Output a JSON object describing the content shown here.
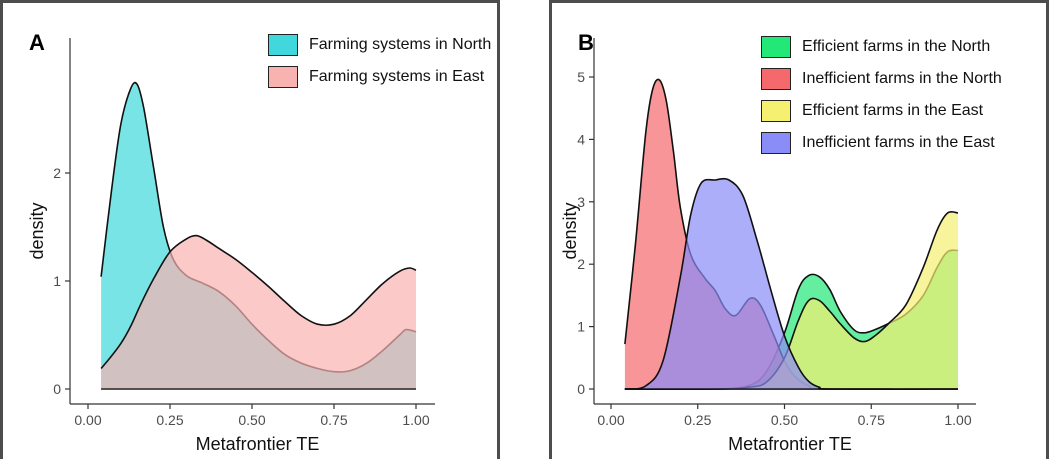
{
  "chart_data": [
    {
      "panel_label": "A",
      "type": "area",
      "xlabel": "Metafrontier TE",
      "ylabel": "density",
      "xlim": [
        0.0,
        1.0
      ],
      "ylim": [
        0.0,
        2.9
      ],
      "xticks": [
        "0.00",
        "0.25",
        "0.50",
        "0.75",
        "1.00"
      ],
      "yticks": [
        "0",
        "1",
        "2"
      ],
      "legend_position": "top-right",
      "grid": false,
      "series": [
        {
          "name": "Farming systems in North",
          "fill": "#40d8dc",
          "x": [
            0.04,
            0.07,
            0.1,
            0.13,
            0.15,
            0.17,
            0.2,
            0.23,
            0.26,
            0.3,
            0.35,
            0.4,
            0.45,
            0.5,
            0.55,
            0.6,
            0.65,
            0.7,
            0.75,
            0.8,
            0.85,
            0.9,
            0.95,
            0.97,
            1.0
          ],
          "y": [
            1.04,
            1.8,
            2.45,
            2.78,
            2.82,
            2.6,
            2.05,
            1.5,
            1.2,
            1.05,
            0.98,
            0.9,
            0.77,
            0.6,
            0.45,
            0.32,
            0.24,
            0.19,
            0.16,
            0.17,
            0.24,
            0.36,
            0.5,
            0.55,
            0.53
          ]
        },
        {
          "name": "Farming systems in East",
          "fill": "#f8b2b0",
          "x": [
            0.04,
            0.07,
            0.1,
            0.13,
            0.16,
            0.2,
            0.25,
            0.3,
            0.33,
            0.36,
            0.4,
            0.45,
            0.5,
            0.55,
            0.6,
            0.65,
            0.7,
            0.75,
            0.8,
            0.85,
            0.9,
            0.95,
            0.98,
            1.0
          ],
          "y": [
            0.19,
            0.3,
            0.42,
            0.58,
            0.78,
            1.02,
            1.27,
            1.39,
            1.42,
            1.38,
            1.3,
            1.2,
            1.08,
            0.95,
            0.81,
            0.68,
            0.6,
            0.6,
            0.68,
            0.83,
            0.98,
            1.09,
            1.12,
            1.1
          ]
        }
      ]
    },
    {
      "panel_label": "B",
      "type": "area",
      "xlabel": "Metafrontier TE",
      "ylabel": "density",
      "xlim": [
        0.0,
        1.0
      ],
      "ylim": [
        0.0,
        5.1
      ],
      "xticks": [
        "0.00",
        "0.25",
        "0.50",
        "0.75",
        "1.00"
      ],
      "yticks": [
        "0",
        "1",
        "2",
        "3",
        "4",
        "5"
      ],
      "legend_position": "top-right",
      "grid": false,
      "series": [
        {
          "name": "Efficient farms in the North",
          "fill": "#22e878",
          "x": [
            0.04,
            0.3,
            0.4,
            0.45,
            0.5,
            0.54,
            0.57,
            0.6,
            0.63,
            0.66,
            0.7,
            0.73,
            0.76,
            0.8,
            0.85,
            0.9,
            0.94,
            0.97,
            1.0
          ],
          "y": [
            0.0,
            0.0,
            0.06,
            0.3,
            0.9,
            1.6,
            1.82,
            1.8,
            1.6,
            1.25,
            0.95,
            0.9,
            0.95,
            1.05,
            1.2,
            1.5,
            1.95,
            2.2,
            2.22
          ]
        },
        {
          "name": "Inefficient farms in the North",
          "fill": "#f5686c",
          "x": [
            0.04,
            0.07,
            0.1,
            0.12,
            0.14,
            0.16,
            0.18,
            0.2,
            0.23,
            0.27,
            0.3,
            0.33,
            0.36,
            0.4,
            0.43,
            0.47,
            0.5,
            0.53,
            0.57,
            0.62,
            1.0
          ],
          "y": [
            0.72,
            2.3,
            4.1,
            4.8,
            4.95,
            4.6,
            3.8,
            2.9,
            2.15,
            1.78,
            1.58,
            1.28,
            1.18,
            1.45,
            1.35,
            0.85,
            0.45,
            0.2,
            0.05,
            0.0,
            0.0
          ]
        },
        {
          "name": "Efficient farms in the East",
          "fill": "#f5f070",
          "x": [
            0.04,
            0.3,
            0.4,
            0.45,
            0.5,
            0.54,
            0.57,
            0.6,
            0.63,
            0.66,
            0.7,
            0.73,
            0.76,
            0.8,
            0.85,
            0.9,
            0.94,
            0.97,
            1.0
          ],
          "y": [
            0.0,
            0.0,
            0.03,
            0.12,
            0.5,
            1.1,
            1.42,
            1.42,
            1.25,
            1.05,
            0.82,
            0.76,
            0.85,
            1.05,
            1.35,
            1.95,
            2.55,
            2.82,
            2.82
          ]
        },
        {
          "name": "Inefficient farms in the East",
          "fill": "#8a8cf8",
          "x": [
            0.04,
            0.1,
            0.15,
            0.2,
            0.23,
            0.26,
            0.3,
            0.34,
            0.38,
            0.42,
            0.46,
            0.5,
            0.54,
            0.57,
            0.6,
            0.64,
            1.0
          ],
          "y": [
            0.0,
            0.05,
            0.45,
            1.8,
            2.8,
            3.3,
            3.35,
            3.35,
            3.1,
            2.4,
            1.6,
            0.85,
            0.35,
            0.12,
            0.03,
            0.0,
            0.0
          ]
        }
      ]
    }
  ]
}
